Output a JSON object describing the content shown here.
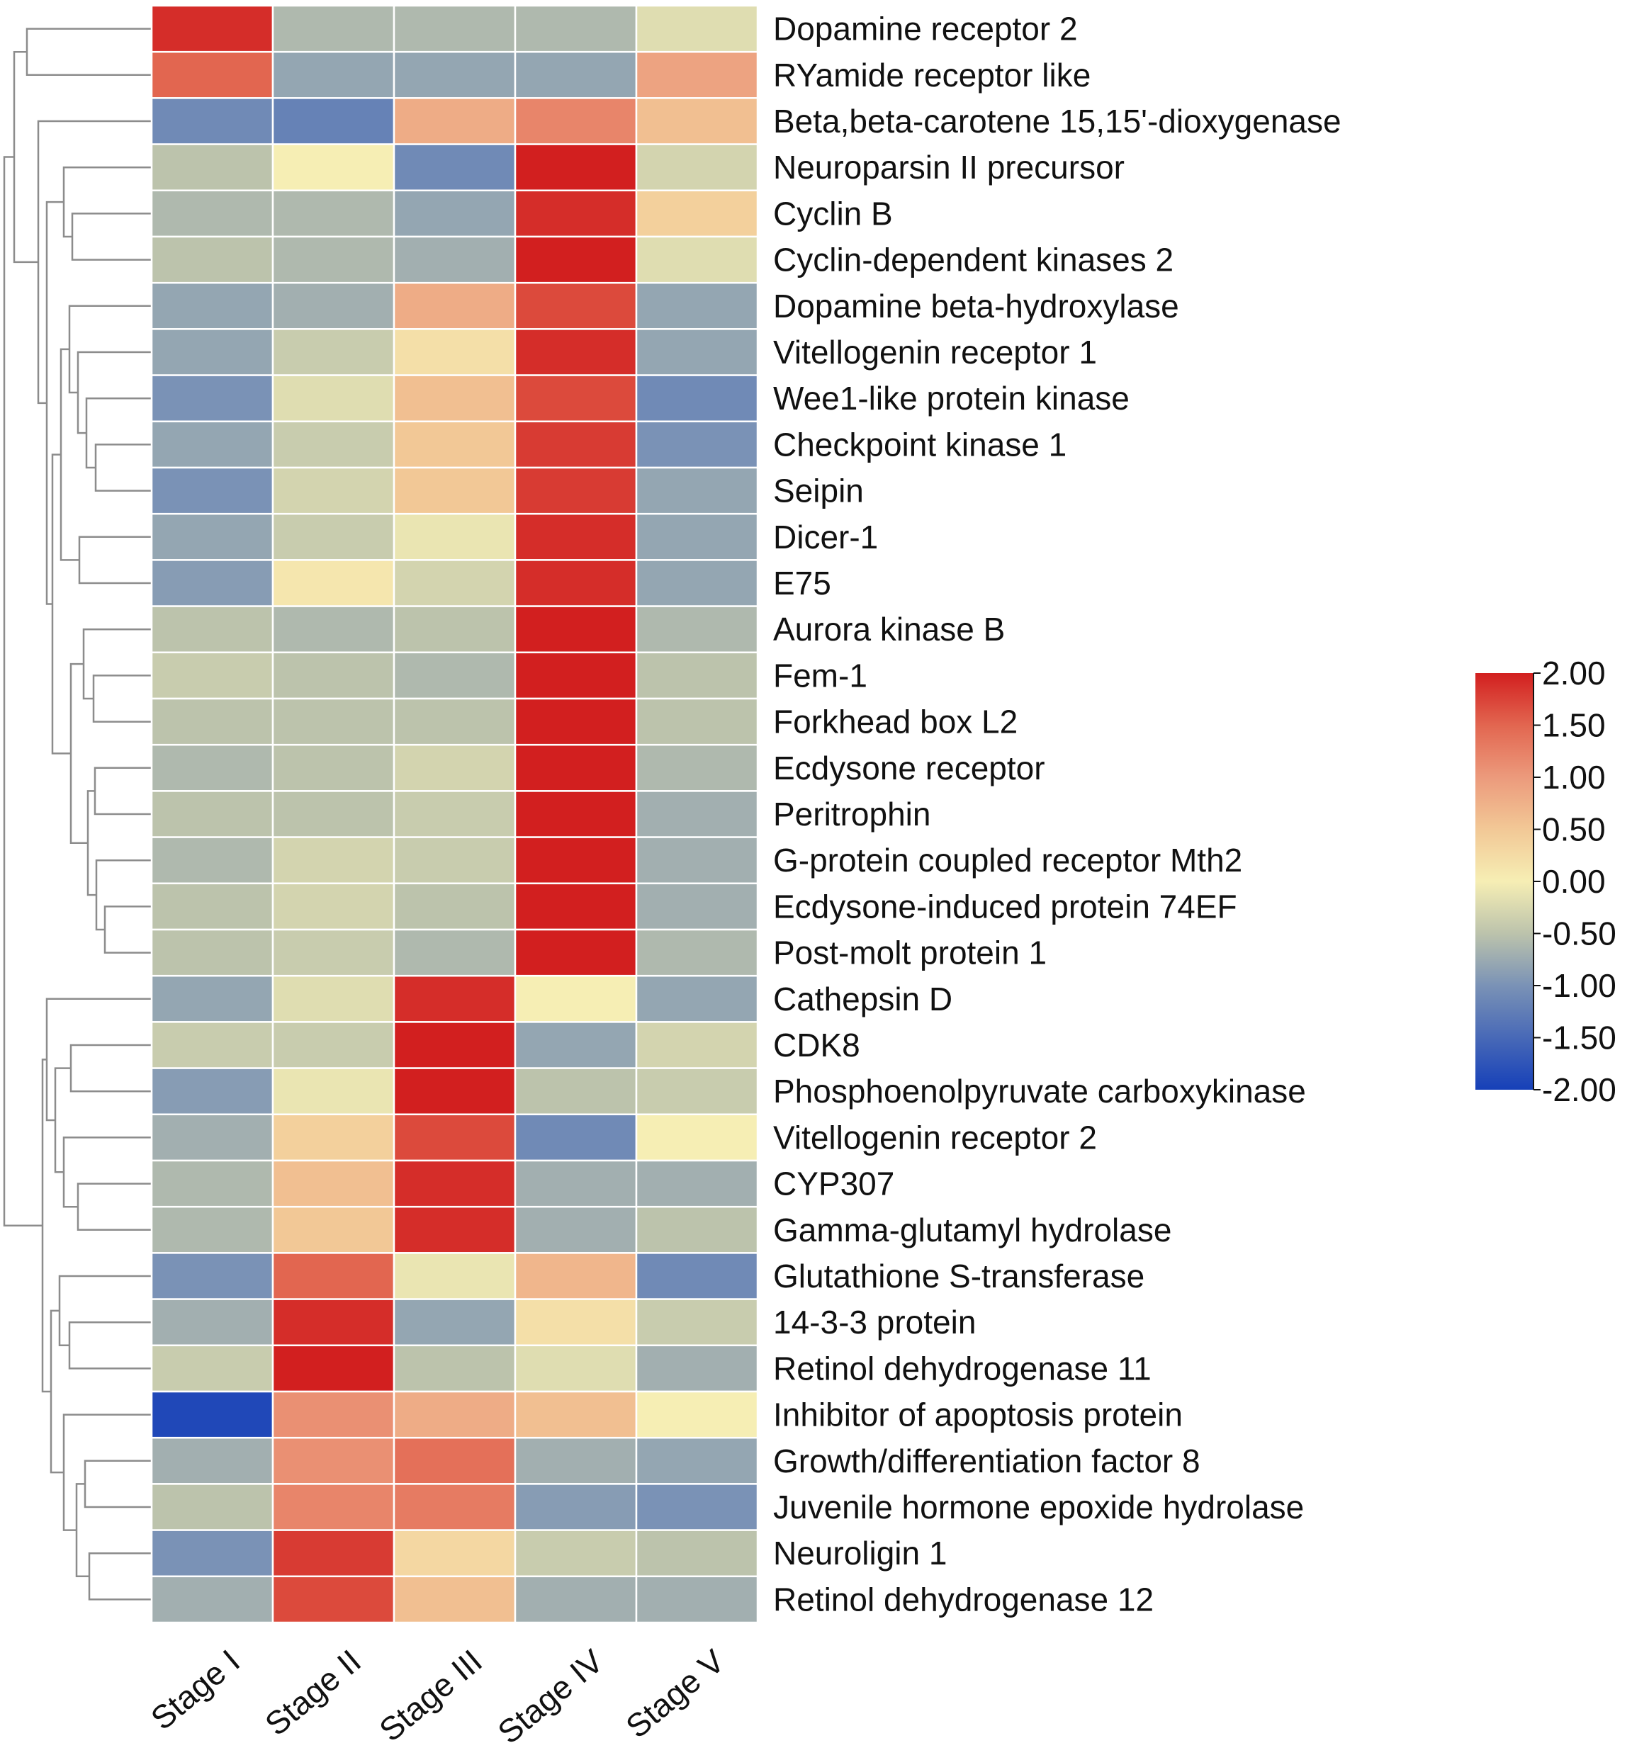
{
  "chart_data": {
    "type": "heatmap",
    "title": "",
    "columns": [
      "Stage I",
      "Stage II",
      "Stage III",
      "Stage IV",
      "Stage V"
    ],
    "rows": [
      {
        "gene": "Dopamine receptor 2",
        "values": [
          1.9,
          -0.6,
          -0.6,
          -0.6,
          -0.2
        ]
      },
      {
        "gene": "RYamide receptor like",
        "values": [
          1.5,
          -0.8,
          -0.8,
          -0.8,
          0.9
        ]
      },
      {
        "gene": "Beta,beta-carotene 15,15'-dioxygenase",
        "values": [
          -1.1,
          -1.2,
          0.8,
          1.2,
          0.6
        ]
      },
      {
        "gene": "Neuroparsin II precursor",
        "values": [
          -0.5,
          0.0,
          -1.1,
          2.0,
          -0.3
        ]
      },
      {
        "gene": "Cyclin B",
        "values": [
          -0.6,
          -0.6,
          -0.8,
          1.9,
          0.4
        ]
      },
      {
        "gene": "Cyclin-dependent kinases 2",
        "values": [
          -0.5,
          -0.6,
          -0.7,
          2.0,
          -0.2
        ]
      },
      {
        "gene": "Dopamine beta-hydroxylase",
        "values": [
          -0.8,
          -0.7,
          0.8,
          1.7,
          -0.8
        ]
      },
      {
        "gene": "Vitellogenin receptor 1",
        "values": [
          -0.8,
          -0.4,
          0.2,
          1.9,
          -0.8
        ]
      },
      {
        "gene": "Wee1-like protein kinase",
        "values": [
          -1.0,
          -0.2,
          0.6,
          1.7,
          -1.1
        ]
      },
      {
        "gene": "Checkpoint kinase 1",
        "values": [
          -0.8,
          -0.4,
          0.5,
          1.8,
          -1.0
        ]
      },
      {
        "gene": "Seipin",
        "values": [
          -1.0,
          -0.3,
          0.5,
          1.8,
          -0.8
        ]
      },
      {
        "gene": "Dicer-1",
        "values": [
          -0.8,
          -0.4,
          -0.1,
          1.9,
          -0.8
        ]
      },
      {
        "gene": "E75",
        "values": [
          -0.9,
          0.1,
          -0.3,
          1.9,
          -0.8
        ]
      },
      {
        "gene": "Aurora kinase B",
        "values": [
          -0.5,
          -0.6,
          -0.5,
          2.0,
          -0.6
        ]
      },
      {
        "gene": "Fem-1",
        "values": [
          -0.4,
          -0.5,
          -0.6,
          2.0,
          -0.5
        ]
      },
      {
        "gene": "Forkhead box L2",
        "values": [
          -0.5,
          -0.5,
          -0.5,
          2.0,
          -0.5
        ]
      },
      {
        "gene": "Ecdysone receptor",
        "values": [
          -0.6,
          -0.5,
          -0.3,
          2.0,
          -0.6
        ]
      },
      {
        "gene": "Peritrophin",
        "values": [
          -0.5,
          -0.5,
          -0.4,
          2.0,
          -0.7
        ]
      },
      {
        "gene": "G-protein coupled receptor Mth2",
        "values": [
          -0.6,
          -0.3,
          -0.4,
          2.0,
          -0.7
        ]
      },
      {
        "gene": "Ecdysone-induced protein 74EF",
        "values": [
          -0.5,
          -0.3,
          -0.5,
          2.0,
          -0.7
        ]
      },
      {
        "gene": "Post-molt protein 1",
        "values": [
          -0.5,
          -0.4,
          -0.6,
          2.0,
          -0.6
        ]
      },
      {
        "gene": "Cathepsin D",
        "values": [
          -0.8,
          -0.2,
          1.9,
          0.0,
          -0.8
        ]
      },
      {
        "gene": "CDK8",
        "values": [
          -0.4,
          -0.4,
          2.0,
          -0.8,
          -0.3
        ]
      },
      {
        "gene": "Phosphoenolpyruvate carboxykinase",
        "values": [
          -0.9,
          -0.1,
          2.0,
          -0.5,
          -0.4
        ]
      },
      {
        "gene": "Vitellogenin receptor 2",
        "values": [
          -0.7,
          0.4,
          1.7,
          -1.1,
          0.0
        ]
      },
      {
        "gene": "CYP307",
        "values": [
          -0.6,
          0.6,
          1.9,
          -0.7,
          -0.7
        ]
      },
      {
        "gene": "Gamma-glutamyl hydrolase",
        "values": [
          -0.6,
          0.5,
          1.9,
          -0.7,
          -0.5
        ]
      },
      {
        "gene": "Glutathione S-transferase",
        "values": [
          -1.0,
          1.5,
          -0.1,
          0.7,
          -1.1
        ]
      },
      {
        "gene": "14-3-3 protein",
        "values": [
          -0.7,
          1.9,
          -0.8,
          0.2,
          -0.4
        ]
      },
      {
        "gene": "Retinol dehydrogenase 11",
        "values": [
          -0.4,
          2.0,
          -0.5,
          -0.2,
          -0.7
        ]
      },
      {
        "gene": "Inhibitor of apoptosis protein",
        "values": [
          -1.9,
          1.1,
          0.8,
          0.6,
          0.0
        ]
      },
      {
        "gene": "Growth/differentiation factor 8",
        "values": [
          -0.7,
          1.1,
          1.4,
          -0.7,
          -0.8
        ]
      },
      {
        "gene": "Juvenile hormone epoxide hydrolase",
        "values": [
          -0.5,
          1.2,
          1.3,
          -0.9,
          -1.0
        ]
      },
      {
        "gene": "Neuroligin 1",
        "values": [
          -1.0,
          1.8,
          0.3,
          -0.4,
          -0.5
        ]
      },
      {
        "gene": "Retinol dehydrogenase 12",
        "values": [
          -0.7,
          1.7,
          0.6,
          -0.7,
          -0.7
        ]
      }
    ],
    "colorbar": {
      "range": [
        -2.0,
        2.0
      ],
      "tick_labels": [
        "2.00",
        "1.50",
        "1.00",
        "0.50",
        "0.00",
        "-0.50",
        "-1.00",
        "-1.50",
        "-2.00"
      ],
      "colors": {
        "-2.0": "#1640b8",
        "-1.0": "#7a92b6",
        "-0.5": "#bcc3ac",
        "0.0": "#f6eeb4",
        "0.5": "#f2c896",
        "1.0": "#ec9a7c",
        "1.5": "#e26650",
        "2.0": "#d21f1f"
      }
    },
    "dendrogram": "row clustering tree on left"
  }
}
